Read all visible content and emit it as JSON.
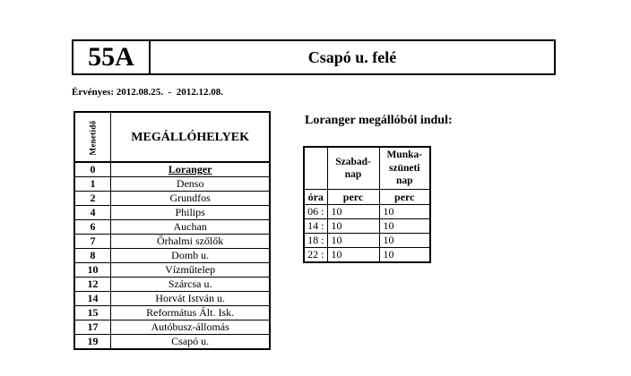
{
  "header": {
    "route_number": "55A",
    "direction": "Csapó u. felé",
    "validity": "Érvényes: 2012.08.25.  -  2012.12.08."
  },
  "stops": {
    "travel_time_header": "Menetidő",
    "stops_header": "MEGÁLLÓHELYEK",
    "rows": [
      {
        "time": "0",
        "stop": "Loranger"
      },
      {
        "time": "1",
        "stop": "Denso"
      },
      {
        "time": "2",
        "stop": "Grundfos"
      },
      {
        "time": "4",
        "stop": "Philips"
      },
      {
        "time": "6",
        "stop": "Auchan"
      },
      {
        "time": "7",
        "stop": "Őrhalmi szőlők"
      },
      {
        "time": "8",
        "stop": "Domb u."
      },
      {
        "time": "10",
        "stop": "Vízműtelep"
      },
      {
        "time": "12",
        "stop": "Szárcsa u."
      },
      {
        "time": "14",
        "stop": "Horvát István u."
      },
      {
        "time": "15",
        "stop": "Református Ált. Isk."
      },
      {
        "time": "17",
        "stop": "Autóbusz-állomás"
      },
      {
        "time": "19",
        "stop": "Csapó u."
      }
    ]
  },
  "departures": {
    "title": "Loranger megállóból indul:",
    "day_headers": {
      "free_day": "Szabad-\nnap",
      "holiday": "Munka-\nszüneti\nnap"
    },
    "subheaders": {
      "hour": "óra",
      "minute_day": "perc",
      "minute_holiday": "perc"
    },
    "rows": [
      {
        "hour": "06 :",
        "free_day": "10",
        "holiday": "10"
      },
      {
        "hour": "14 :",
        "free_day": "10",
        "holiday": "10"
      },
      {
        "hour": "18 :",
        "free_day": "10",
        "holiday": "10"
      },
      {
        "hour": "22 :",
        "free_day": "10",
        "holiday": "10"
      }
    ]
  }
}
